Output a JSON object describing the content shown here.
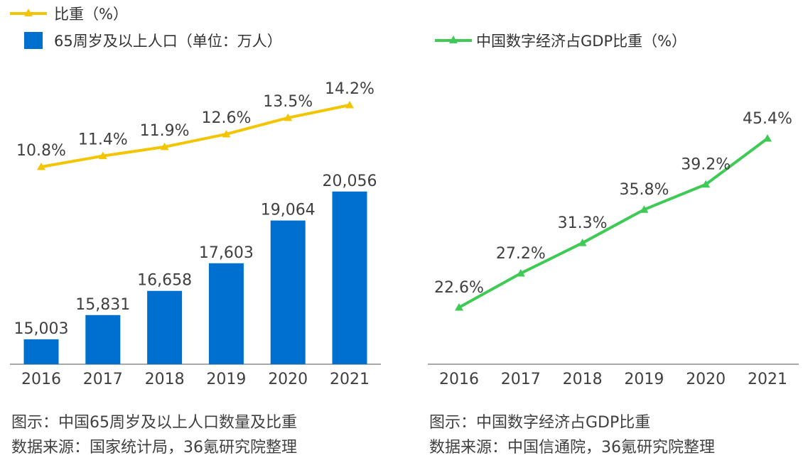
{
  "chart_data": [
    {
      "type": "bar",
      "categories": [
        "2016",
        "2017",
        "2018",
        "2019",
        "2020",
        "2021"
      ],
      "series": [
        {
          "name": "65周岁及以上人口（单位：万人）",
          "kind": "bar",
          "color": "#0070D0",
          "values": [
            15003,
            15831,
            16658,
            17603,
            19064,
            20056
          ],
          "labels": [
            "15,003",
            "15,831",
            "16,658",
            "17,603",
            "19,064",
            "20,056"
          ]
        },
        {
          "name": "比重（%）",
          "kind": "line",
          "marker": "triangle",
          "color": "#F2C500",
          "values": [
            10.8,
            11.4,
            11.9,
            12.6,
            13.5,
            14.2
          ],
          "labels": [
            "10.8%",
            "11.4%",
            "11.9%",
            "12.6%",
            "13.5%",
            "14.2%"
          ]
        }
      ],
      "legend_placement": "top-left",
      "grid": false
    },
    {
      "type": "line",
      "categories": [
        "2016",
        "2017",
        "2018",
        "2019",
        "2020",
        "2021"
      ],
      "series": [
        {
          "name": "中国数字经济占GDP比重（%）",
          "marker": "triangle",
          "color": "#3FC955",
          "values": [
            22.6,
            27.2,
            31.3,
            35.8,
            39.2,
            45.4
          ],
          "labels": [
            "22.6%",
            "27.2%",
            "31.3%",
            "35.8%",
            "39.2%",
            "45.4%"
          ]
        }
      ],
      "legend_placement": "top",
      "grid": false
    }
  ],
  "captions": {
    "left_title": "图示：中国65周岁及以上人口数量及比重",
    "left_source": "数据来源：国家统计局，36氪研究院整理",
    "right_title": "图示：中国数字经济占GDP比重",
    "right_source": "数据来源：中国信通院，36氪研究院整理"
  }
}
